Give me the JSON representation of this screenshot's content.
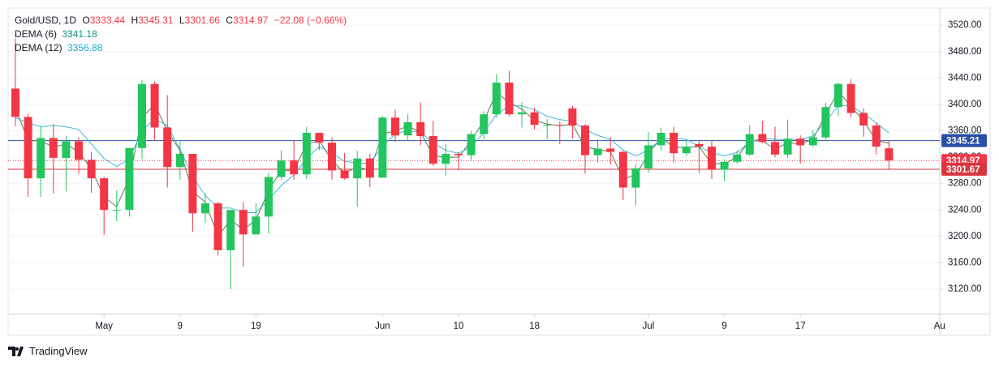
{
  "header": {
    "symbol": "Gold/USD, 1D",
    "open_prefix": "O",
    "high_prefix": "H",
    "low_prefix": "L",
    "close_prefix": "C",
    "change": "−22.08 (−0.66%)"
  },
  "branding": "TradingView",
  "chart_data": {
    "type": "candlestick",
    "categories": [
      null,
      null,
      null,
      null,
      null,
      null,
      null,
      "May",
      null,
      null,
      null,
      null,
      null,
      "9",
      null,
      null,
      null,
      null,
      null,
      "19",
      null,
      null,
      null,
      null,
      null,
      null,
      null,
      null,
      null,
      "Jun",
      null,
      null,
      null,
      null,
      null,
      "10",
      null,
      null,
      null,
      null,
      null,
      "18",
      null,
      null,
      null,
      null,
      null,
      null,
      null,
      null,
      "Jul",
      null,
      null,
      null,
      null,
      null,
      "9",
      null,
      null,
      null,
      null,
      null,
      "17",
      null,
      null,
      null,
      null,
      null,
      null,
      null,
      null,
      null,
      null,
      "Au"
    ],
    "open": [
      3424,
      3381,
      3288,
      3349,
      3319,
      3344,
      3316,
      3288,
      3240,
      3240,
      3334,
      3431,
      3365,
      3305,
      3325,
      3235,
      3250,
      3179,
      3240,
      3203,
      3230,
      3290,
      3315,
      3294,
      3357,
      3342,
      3300,
      3288,
      3318,
      3289,
      3380,
      3353,
      3373,
      3352,
      3310,
      3325,
      3323,
      3355,
      3385,
      3433,
      3385,
      3388,
      3369,
      3369,
      3394,
      3368,
      3323,
      3333,
      3328,
      3274,
      3303,
      3338,
      3357,
      3326,
      3340,
      3336,
      3301,
      3313,
      3324,
      3355,
      3343,
      3324,
      3348,
      3338,
      3350,
      3396,
      3431,
      3387,
      3368,
      3333.44,
      null,
      null,
      null,
      null
    ],
    "high": [
      3500,
      3386,
      3367,
      3370,
      3352,
      3350,
      3328,
      3290,
      3270,
      3334,
      3437,
      3435,
      3414,
      3345,
      3325,
      3265,
      3252,
      3240,
      3252,
      3250,
      3296,
      3330,
      3345,
      3366,
      3357,
      3350,
      3326,
      3330,
      3325,
      3382,
      3392,
      3385,
      3403,
      3375,
      3340,
      3328,
      3360,
      3390,
      3446,
      3451,
      3403,
      3395,
      3378,
      3374,
      3398,
      3370,
      3347,
      3350,
      3330,
      3309,
      3358,
      3365,
      3366,
      3345,
      3345,
      3345,
      3317,
      3330,
      3369,
      3375,
      3366,
      3377,
      3353,
      3361,
      3402,
      3433,
      3438,
      3394,
      3372,
      3345.31,
      null,
      null,
      null,
      null
    ],
    "low": [
      3367,
      3260,
      3260,
      3265,
      3268,
      3295,
      3266,
      3202,
      3223,
      3230,
      3317,
      3345,
      3274,
      3286,
      3207,
      3220,
      3171,
      3120,
      3154,
      3206,
      3204,
      3285,
      3286,
      3287,
      3331,
      3286,
      3286,
      3245,
      3275,
      3289,
      3343,
      3345,
      3338,
      3307,
      3292,
      3300,
      3314,
      3347,
      3380,
      3382,
      3365,
      3362,
      3347,
      3340,
      3348,
      3295,
      3312,
      3309,
      3255,
      3247,
      3296,
      3330,
      3311,
      3322,
      3296,
      3287,
      3283,
      3310,
      3322,
      3341,
      3320,
      3319,
      3310,
      3336,
      3345,
      3382,
      3381,
      3351,
      3324,
      3301.66,
      null,
      null,
      null,
      null
    ],
    "close": [
      3381,
      3288,
      3349,
      3319,
      3344,
      3316,
      3288,
      3240,
      3240,
      3334,
      3431,
      3365,
      3305,
      3325,
      3235,
      3250,
      3179,
      3240,
      3203,
      3230,
      3290,
      3315,
      3294,
      3357,
      3342,
      3300,
      3288,
      3318,
      3289,
      3380,
      3353,
      3373,
      3352,
      3310,
      3325,
      3323,
      3355,
      3385,
      3433,
      3385,
      3388,
      3369,
      3369,
      3368,
      3368,
      3323,
      3333,
      3328,
      3274,
      3303,
      3338,
      3357,
      3326,
      3336,
      3336,
      3301,
      3313,
      3324,
      3355,
      3343,
      3324,
      3348,
      3338,
      3350,
      3396,
      3431,
      3387,
      3368,
      3336,
      3314.97,
      null,
      null,
      null,
      null
    ],
    "up_color": "#22c55e",
    "down_color": "#f23645",
    "indicators": [
      {
        "name": "DEMA (6)",
        "color": "#5b7a52",
        "value_color": "#089981",
        "values": [
          3395,
          3345,
          3345,
          3335,
          3340,
          3328,
          3302,
          3260,
          3245,
          3288,
          3380,
          3400,
          3360,
          3330,
          3268,
          3252,
          3200,
          3225,
          3210,
          3225,
          3270,
          3300,
          3300,
          3340,
          3345,
          3315,
          3296,
          3305,
          3300,
          3355,
          3360,
          3367,
          3358,
          3322,
          3320,
          3320,
          3345,
          3375,
          3418,
          3403,
          3393,
          3376,
          3370,
          3368,
          3370,
          3335,
          3332,
          3328,
          3287,
          3293,
          3325,
          3350,
          3335,
          3335,
          3336,
          3310,
          3310,
          3320,
          3345,
          3345,
          3332,
          3342,
          3340,
          3347,
          3385,
          3420,
          3397,
          3375,
          3345,
          3341.18,
          null,
          null,
          null,
          null
        ]
      },
      {
        "name": "DEMA (12)",
        "color": "#3fb8d8",
        "value_color": "#1fa9cf",
        "values": [
          3380,
          3372,
          3366,
          3368,
          3366,
          3362,
          3340,
          3318,
          3306,
          3318,
          3360,
          3378,
          3368,
          3332,
          3290,
          3262,
          3243,
          3243,
          3236,
          3236,
          3256,
          3277,
          3293,
          3318,
          3336,
          3326,
          3314,
          3311,
          3311,
          3336,
          3355,
          3361,
          3357,
          3342,
          3330,
          3326,
          3336,
          3357,
          3385,
          3398,
          3398,
          3392,
          3382,
          3377,
          3374,
          3362,
          3353,
          3347,
          3331,
          3322,
          3331,
          3347,
          3349,
          3347,
          3336,
          3327,
          3322,
          3327,
          3343,
          3349,
          3347,
          3347,
          3347,
          3352,
          3374,
          3398,
          3398,
          3386,
          3372,
          3356.88,
          null,
          null,
          null,
          null
        ]
      }
    ],
    "price_lines": [
      {
        "value": 3345.21,
        "color": "#2a4fa8"
      },
      {
        "value": 3301.67,
        "color": "#d9363e"
      }
    ],
    "ylim": [
      3082,
      3546
    ],
    "yticks": [
      {
        "value": 3120,
        "label": "3120.00"
      },
      {
        "value": 3160,
        "label": "3160.00"
      },
      {
        "value": 3200,
        "label": "3200.00"
      },
      {
        "value": 3240,
        "label": "3240.00"
      },
      {
        "value": 3280,
        "label": "3280.00"
      },
      {
        "value": 3320,
        "label": "3320.00"
      },
      {
        "value": 3360,
        "label": "3360.00"
      },
      {
        "value": 3400,
        "label": "3400.00"
      },
      {
        "value": 3440,
        "label": "3440.00"
      },
      {
        "value": 3480,
        "label": "3480.00"
      },
      {
        "value": 3520,
        "label": "3520.00"
      }
    ],
    "grid": true
  }
}
